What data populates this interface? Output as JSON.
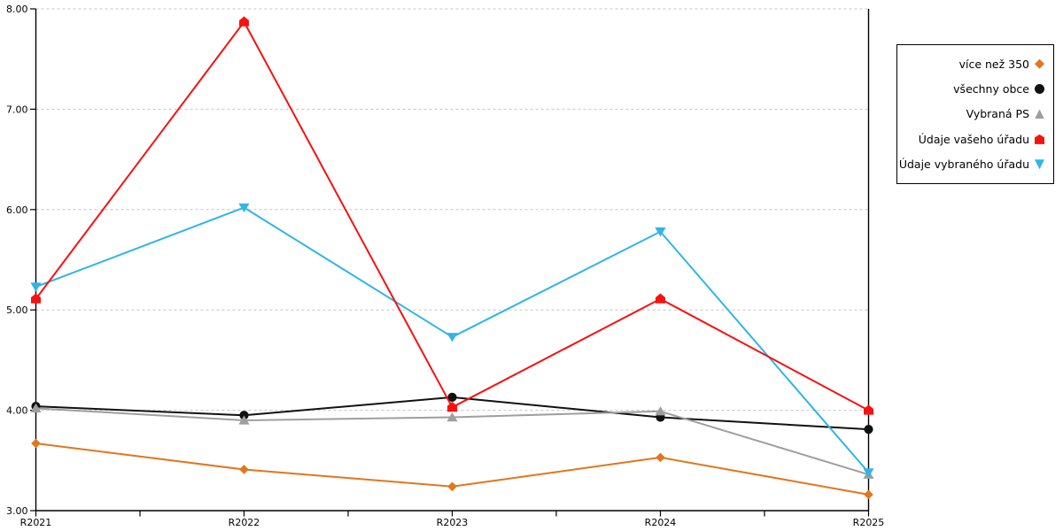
{
  "chart_data": {
    "type": "line",
    "title": "",
    "categories": [
      "R2021",
      "R2022",
      "R2023",
      "R2024",
      "R2025"
    ],
    "series": [
      {
        "name": "více než 350",
        "color": "#E2761B",
        "marker": "diamond",
        "values": [
          3.67,
          3.41,
          3.24,
          3.53,
          3.16
        ]
      },
      {
        "name": "všechny obce",
        "color": "#111111",
        "marker": "circle",
        "values": [
          4.04,
          3.95,
          4.13,
          3.93,
          3.81
        ]
      },
      {
        "name": "Vybraná PS",
        "color": "#9E9E9E",
        "marker": "triangle-up",
        "values": [
          4.02,
          3.9,
          3.93,
          3.99,
          3.36
        ]
      },
      {
        "name": "Údaje vašeho úřadu",
        "color": "#FA1010",
        "marker": "pentagon",
        "values": [
          5.11,
          7.87,
          4.03,
          5.11,
          4.0
        ]
      },
      {
        "name": "Údaje vybraného úřadu",
        "color": "#2FB5E8",
        "marker": "triangle-down",
        "values": [
          5.23,
          6.02,
          4.73,
          5.78,
          3.38
        ]
      }
    ],
    "y_axis": {
      "min": 3,
      "max": 8,
      "step": 1,
      "tick_labels": [
        "3.00",
        "4.00",
        "5.00",
        "6.00",
        "7.00",
        "8.00"
      ]
    },
    "x_axis": {
      "tick_labels": [
        "R2021",
        "R2022",
        "R2023",
        "R2024",
        "R2025"
      ],
      "minor_ticks_between_labels": 1
    },
    "grid": {
      "horizontal": "dashed",
      "color": "#C3C3C3"
    },
    "axes": {
      "color": "#000000",
      "right_border": true
    },
    "legend": {
      "position": "top-right",
      "background": "#FFFFFF",
      "border_color": "#000000"
    }
  }
}
